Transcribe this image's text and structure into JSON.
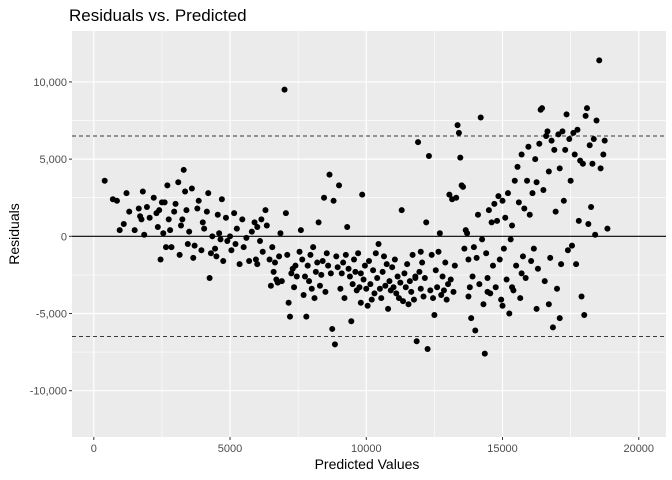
{
  "chart_data": {
    "type": "scatter",
    "title": "Residuals vs. Predicted",
    "xlabel": "Predicted Values",
    "ylabel": "Residuals",
    "xlim": [
      -800,
      21000
    ],
    "ylim": [
      -13000,
      13300
    ],
    "x_ticks": [
      0,
      5000,
      10000,
      15000,
      20000
    ],
    "x_tick_labels": [
      "0",
      "5000",
      "10000",
      "15000",
      "20000"
    ],
    "y_ticks": [
      -10000,
      -5000,
      0,
      5000,
      10000
    ],
    "y_tick_labels": [
      "-10,000",
      "-5,000",
      "0",
      "5,000",
      "10,000"
    ],
    "grid": true,
    "reference_lines": [
      {
        "y": 0,
        "style": "solid"
      },
      {
        "y": 6500,
        "style": "dashed"
      },
      {
        "y": -6500,
        "style": "dashed"
      }
    ],
    "colors": {
      "panel_background": "#ebebeb",
      "grid": "#ffffff",
      "points": "#000000"
    },
    "points": [
      [
        400,
        3600
      ],
      [
        700,
        2400
      ],
      [
        850,
        2300
      ],
      [
        950,
        400
      ],
      [
        1100,
        800
      ],
      [
        1200,
        2800
      ],
      [
        1300,
        1600
      ],
      [
        1500,
        400
      ],
      [
        1650,
        1800
      ],
      [
        1700,
        1300
      ],
      [
        1750,
        1100
      ],
      [
        1800,
        2900
      ],
      [
        1850,
        100
      ],
      [
        1950,
        1900
      ],
      [
        2050,
        1200
      ],
      [
        2200,
        2500
      ],
      [
        2300,
        1500
      ],
      [
        2350,
        600
      ],
      [
        2400,
        1700
      ],
      [
        2450,
        -1500
      ],
      [
        2500,
        2200
      ],
      [
        2550,
        200
      ],
      [
        2600,
        2200
      ],
      [
        2650,
        -700
      ],
      [
        2700,
        3300
      ],
      [
        2750,
        1100
      ],
      [
        2800,
        400
      ],
      [
        2850,
        -700
      ],
      [
        2950,
        1600
      ],
      [
        3000,
        2100
      ],
      [
        3100,
        3500
      ],
      [
        3150,
        -1200
      ],
      [
        3200,
        700
      ],
      [
        3250,
        1100
      ],
      [
        3300,
        4300
      ],
      [
        3350,
        2900
      ],
      [
        3400,
        1700
      ],
      [
        3450,
        -500
      ],
      [
        3500,
        300
      ],
      [
        3600,
        3100
      ],
      [
        3650,
        -1400
      ],
      [
        3700,
        -600
      ],
      [
        3800,
        1800
      ],
      [
        3850,
        2300
      ],
      [
        3950,
        -900
      ],
      [
        4000,
        900
      ],
      [
        4050,
        500
      ],
      [
        4150,
        1600
      ],
      [
        4200,
        2800
      ],
      [
        4250,
        -2700
      ],
      [
        4300,
        -1100
      ],
      [
        4350,
        0
      ],
      [
        4450,
        -800
      ],
      [
        4500,
        -1300
      ],
      [
        4550,
        1400
      ],
      [
        4600,
        200
      ],
      [
        4650,
        -200
      ],
      [
        4700,
        2400
      ],
      [
        4750,
        -1600
      ],
      [
        4850,
        1200
      ],
      [
        4900,
        -300
      ],
      [
        5000,
        0
      ],
      [
        5050,
        -900
      ],
      [
        5150,
        1500
      ],
      [
        5200,
        -500
      ],
      [
        5250,
        500
      ],
      [
        5350,
        -1800
      ],
      [
        5450,
        1100
      ],
      [
        5500,
        -700
      ],
      [
        5600,
        -100
      ],
      [
        5700,
        -1600
      ],
      [
        5800,
        300
      ],
      [
        5900,
        900
      ],
      [
        5950,
        -1500
      ],
      [
        6000,
        600
      ],
      [
        6100,
        -300
      ],
      [
        6150,
        1100
      ],
      [
        6200,
        -1000
      ],
      [
        6300,
        1700
      ],
      [
        6350,
        700
      ],
      [
        6450,
        -1500
      ],
      [
        6500,
        -3200
      ],
      [
        6550,
        -700
      ],
      [
        6600,
        -2300
      ],
      [
        6650,
        -1700
      ],
      [
        6700,
        -2800
      ],
      [
        6750,
        -3000
      ],
      [
        6800,
        -1300
      ],
      [
        6850,
        200
      ],
      [
        6900,
        -2900
      ],
      [
        7000,
        9500
      ],
      [
        7050,
        1500
      ],
      [
        7100,
        -1200
      ],
      [
        7150,
        -4300
      ],
      [
        7200,
        -5200
      ],
      [
        7250,
        -2400
      ],
      [
        7300,
        -2100
      ],
      [
        7350,
        -3300
      ],
      [
        7400,
        -1900
      ],
      [
        7450,
        -2600
      ],
      [
        7550,
        -1000
      ],
      [
        7600,
        400
      ],
      [
        7650,
        -1500
      ],
      [
        7700,
        -3800
      ],
      [
        7750,
        -2600
      ],
      [
        7800,
        -5200
      ],
      [
        7850,
        -1900
      ],
      [
        7900,
        -2900
      ],
      [
        7950,
        -1200
      ],
      [
        8000,
        -3400
      ],
      [
        8050,
        -700
      ],
      [
        8100,
        -4000
      ],
      [
        8150,
        -2300
      ],
      [
        8200,
        -1700
      ],
      [
        8250,
        900
      ],
      [
        8300,
        -3200
      ],
      [
        8350,
        -2500
      ],
      [
        8400,
        -1600
      ],
      [
        8450,
        2500
      ],
      [
        8500,
        -3600
      ],
      [
        8550,
        -1100
      ],
      [
        8600,
        -1900
      ],
      [
        8650,
        4000
      ],
      [
        8700,
        -2400
      ],
      [
        8750,
        -6000
      ],
      [
        8800,
        2300
      ],
      [
        8850,
        -7000
      ],
      [
        8900,
        -1300
      ],
      [
        8950,
        -2000
      ],
      [
        9000,
        3300
      ],
      [
        9050,
        -3400
      ],
      [
        9100,
        -2400
      ],
      [
        9150,
        -1700
      ],
      [
        9200,
        -4000
      ],
      [
        9250,
        -1200
      ],
      [
        9300,
        600
      ],
      [
        9350,
        -2100
      ],
      [
        9400,
        -2600
      ],
      [
        9450,
        -5500
      ],
      [
        9500,
        -3100
      ],
      [
        9550,
        -1500
      ],
      [
        9600,
        -2300
      ],
      [
        9650,
        -3500
      ],
      [
        9700,
        -1100
      ],
      [
        9750,
        -3300
      ],
      [
        9800,
        -2400
      ],
      [
        9850,
        2700
      ],
      [
        9900,
        -2800
      ],
      [
        9950,
        -1900
      ],
      [
        10000,
        -3400
      ],
      [
        10050,
        -4500
      ],
      [
        10100,
        -1600
      ],
      [
        10150,
        -3100
      ],
      [
        10200,
        -4100
      ],
      [
        10250,
        -2200
      ],
      [
        10300,
        -3700
      ],
      [
        10350,
        -1100
      ],
      [
        10400,
        -2700
      ],
      [
        10450,
        -500
      ],
      [
        10500,
        -3400
      ],
      [
        10550,
        -4000
      ],
      [
        10600,
        -2300
      ],
      [
        10650,
        -1300
      ],
      [
        10700,
        -3200
      ],
      [
        10750,
        -1800
      ],
      [
        10800,
        -4700
      ],
      [
        10850,
        -2900
      ],
      [
        10900,
        -3500
      ],
      [
        10950,
        -2000
      ],
      [
        11000,
        -3300
      ],
      [
        11050,
        -1500
      ],
      [
        11100,
        -3700
      ],
      [
        11150,
        -2600
      ],
      [
        11200,
        -4000
      ],
      [
        11250,
        -3000
      ],
      [
        11300,
        1700
      ],
      [
        11350,
        -4200
      ],
      [
        11400,
        -2400
      ],
      [
        11450,
        -3300
      ],
      [
        11500,
        -1800
      ],
      [
        11550,
        -4400
      ],
      [
        11600,
        -2900
      ],
      [
        11650,
        -3600
      ],
      [
        11700,
        -1200
      ],
      [
        11750,
        -4100
      ],
      [
        11800,
        -2700
      ],
      [
        11850,
        -6800
      ],
      [
        11900,
        6100
      ],
      [
        11950,
        -2300
      ],
      [
        12000,
        -3400
      ],
      [
        12050,
        -1700
      ],
      [
        12100,
        -3900
      ],
      [
        12150,
        -2700
      ],
      [
        12200,
        900
      ],
      [
        12250,
        -7300
      ],
      [
        12300,
        5200
      ],
      [
        12350,
        -3500
      ],
      [
        12400,
        -1200
      ],
      [
        12450,
        -4000
      ],
      [
        12500,
        -5100
      ],
      [
        12550,
        -2200
      ],
      [
        12600,
        -3300
      ],
      [
        12650,
        -1000
      ],
      [
        12700,
        200
      ],
      [
        12750,
        -3800
      ],
      [
        12800,
        -2600
      ],
      [
        12850,
        -3500
      ],
      [
        12900,
        -1700
      ],
      [
        12950,
        -4100
      ],
      [
        13000,
        -3100
      ],
      [
        13050,
        2700
      ],
      [
        13100,
        -2800
      ],
      [
        13150,
        2400
      ],
      [
        13200,
        -3600
      ],
      [
        13250,
        -1900
      ],
      [
        13300,
        2500
      ],
      [
        13350,
        7200
      ],
      [
        13400,
        6700
      ],
      [
        13450,
        5100
      ],
      [
        13500,
        3300
      ],
      [
        13550,
        3200
      ],
      [
        13600,
        -800
      ],
      [
        13650,
        400
      ],
      [
        13700,
        200
      ],
      [
        13750,
        -1500
      ],
      [
        13800,
        -3300
      ],
      [
        13850,
        -5300
      ],
      [
        13900,
        -2600
      ],
      [
        13950,
        -700
      ],
      [
        14000,
        -6100
      ],
      [
        14050,
        -1400
      ],
      [
        14100,
        1400
      ],
      [
        14150,
        -3100
      ],
      [
        14200,
        7700
      ],
      [
        14250,
        -200
      ],
      [
        14300,
        -4400
      ],
      [
        14350,
        -7600
      ],
      [
        14400,
        -1100
      ],
      [
        14450,
        -2700
      ],
      [
        14500,
        1700
      ],
      [
        14550,
        -3700
      ],
      [
        14600,
        900
      ],
      [
        14650,
        -1900
      ],
      [
        14700,
        2100
      ],
      [
        14750,
        -3300
      ],
      [
        14800,
        1000
      ],
      [
        14850,
        2600
      ],
      [
        14900,
        -1500
      ],
      [
        14950,
        -4100
      ],
      [
        15000,
        2300
      ],
      [
        15050,
        -800
      ],
      [
        15100,
        1200
      ],
      [
        15150,
        -2800
      ],
      [
        15200,
        2800
      ],
      [
        15250,
        -5000
      ],
      [
        15300,
        -200
      ],
      [
        15350,
        700
      ],
      [
        15400,
        -3500
      ],
      [
        15450,
        3600
      ],
      [
        15500,
        -1900
      ],
      [
        15550,
        4500
      ],
      [
        15600,
        2200
      ],
      [
        15650,
        -4000
      ],
      [
        15700,
        5300
      ],
      [
        15750,
        -1300
      ],
      [
        15800,
        1800
      ],
      [
        15850,
        -2700
      ],
      [
        15900,
        3600
      ],
      [
        15950,
        5800
      ],
      [
        16000,
        1400
      ],
      [
        16050,
        -1600
      ],
      [
        16100,
        2800
      ],
      [
        16150,
        -800
      ],
      [
        16200,
        5000
      ],
      [
        16250,
        3500
      ],
      [
        16300,
        -2100
      ],
      [
        16350,
        6000
      ],
      [
        16400,
        8200
      ],
      [
        16450,
        8300
      ],
      [
        16500,
        3000
      ],
      [
        16550,
        -2900
      ],
      [
        16600,
        6500
      ],
      [
        16650,
        6800
      ],
      [
        16700,
        4200
      ],
      [
        16750,
        -1400
      ],
      [
        16800,
        6200
      ],
      [
        16850,
        -5900
      ],
      [
        16900,
        5600
      ],
      [
        16950,
        1600
      ],
      [
        17000,
        -3400
      ],
      [
        17050,
        6600
      ],
      [
        17100,
        4400
      ],
      [
        17150,
        -1800
      ],
      [
        17200,
        6800
      ],
      [
        17250,
        2300
      ],
      [
        17300,
        5600
      ],
      [
        17350,
        7900
      ],
      [
        17400,
        -900
      ],
      [
        17450,
        6300
      ],
      [
        17500,
        3600
      ],
      [
        17550,
        -600
      ],
      [
        17600,
        6700
      ],
      [
        17650,
        5300
      ],
      [
        17700,
        -1800
      ],
      [
        17750,
        6900
      ],
      [
        17800,
        1000
      ],
      [
        17850,
        4900
      ],
      [
        17900,
        -3900
      ],
      [
        17950,
        4700
      ],
      [
        18000,
        -5100
      ],
      [
        18050,
        7800
      ],
      [
        18100,
        8300
      ],
      [
        18150,
        800
      ],
      [
        18200,
        5900
      ],
      [
        18250,
        1900
      ],
      [
        18300,
        4700
      ],
      [
        18350,
        6300
      ],
      [
        18400,
        100
      ],
      [
        18450,
        7500
      ],
      [
        18550,
        11400
      ],
      [
        18600,
        4400
      ],
      [
        18700,
        5300
      ],
      [
        18750,
        6200
      ],
      [
        18850,
        500
      ],
      [
        6000,
        -1800
      ],
      [
        9800,
        -4300
      ],
      [
        12000,
        -1000
      ],
      [
        15000,
        -4500
      ],
      [
        16700,
        -4400
      ],
      [
        17100,
        -5300
      ],
      [
        15350,
        -3300
      ],
      [
        16250,
        -4700
      ],
      [
        11800,
        -2600
      ],
      [
        13750,
        -3900
      ],
      [
        14450,
        -3600
      ],
      [
        15700,
        -2400
      ]
    ]
  }
}
